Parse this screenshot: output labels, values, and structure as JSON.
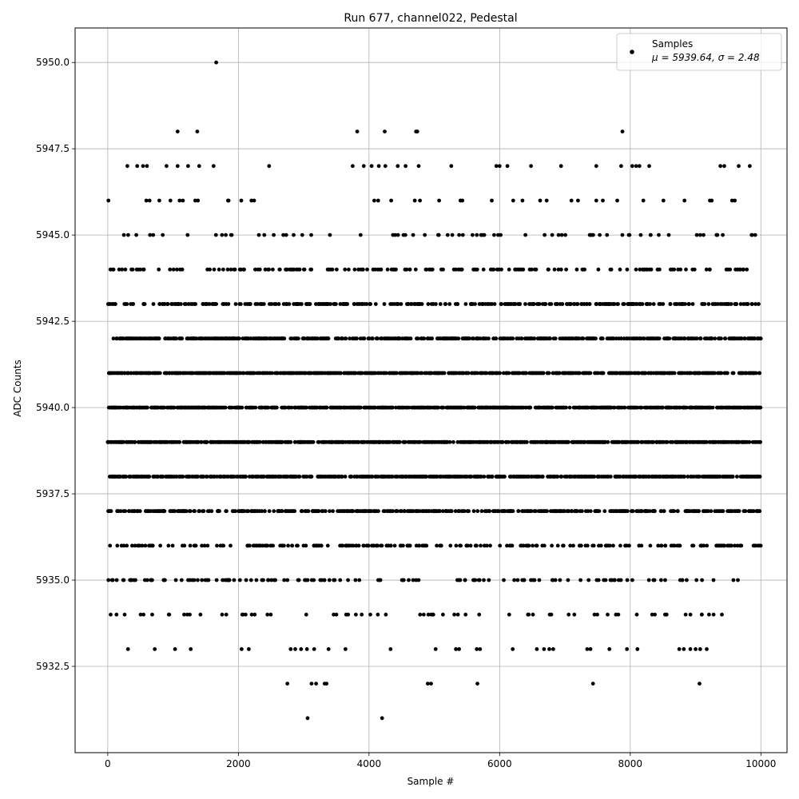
{
  "chart_data": {
    "type": "scatter",
    "title": "Run 677, channel022, Pedestal",
    "xlabel": "Sample #",
    "ylabel": "ADC Counts",
    "xlim": [
      -500,
      10400
    ],
    "ylim": [
      5930.0,
      5951.0
    ],
    "xticks": [
      0,
      2000,
      4000,
      6000,
      8000,
      10000
    ],
    "xtick_labels": [
      "0",
      "2000",
      "4000",
      "6000",
      "8000",
      "10000"
    ],
    "yticks": [
      5932.5,
      5935.0,
      5937.5,
      5940.0,
      5942.5,
      5945.0,
      5947.5,
      5950.0
    ],
    "ytick_labels": [
      "5932.5",
      "5935.0",
      "5937.5",
      "5940.0",
      "5942.5",
      "5945.0",
      "5947.5",
      "5950.0"
    ],
    "grid": true,
    "legend": {
      "placement": "top-right",
      "entries": [
        {
          "label": "Samples",
          "sublabel": "μ = 5939.64, σ = 2.48"
        }
      ]
    },
    "marker_color": "#000000",
    "series": [
      {
        "name": "Samples",
        "mu": 5939.64,
        "sigma": 2.48,
        "n_samples": 10000,
        "sparse_points": [
          [
            1660,
            5950
          ],
          [
            1070,
            5948
          ],
          [
            1370,
            5948
          ],
          [
            3820,
            5948
          ],
          [
            4240,
            5948
          ],
          [
            4720,
            5948
          ],
          [
            4740,
            5948
          ],
          [
            7880,
            5948
          ],
          [
            300,
            5947
          ],
          [
            450,
            5947
          ],
          [
            540,
            5947
          ],
          [
            600,
            5947
          ],
          [
            900,
            5947
          ],
          [
            1070,
            5947
          ],
          [
            1230,
            5947
          ],
          [
            1400,
            5947
          ],
          [
            1620,
            5947
          ],
          [
            2470,
            5947
          ],
          [
            3750,
            5947
          ],
          [
            3920,
            5947
          ],
          [
            4040,
            5947
          ],
          [
            4150,
            5947
          ],
          [
            4250,
            5947
          ],
          [
            4440,
            5947
          ],
          [
            4560,
            5947
          ],
          [
            4760,
            5947
          ],
          [
            5260,
            5947
          ],
          [
            5950,
            5947
          ],
          [
            6000,
            5947
          ],
          [
            6120,
            5947
          ],
          [
            6480,
            5947
          ],
          [
            6940,
            5947
          ],
          [
            7480,
            5947
          ],
          [
            7860,
            5947
          ],
          [
            8030,
            5947
          ],
          [
            8090,
            5947
          ],
          [
            8140,
            5947
          ],
          [
            8290,
            5947
          ],
          [
            9380,
            5947
          ],
          [
            9440,
            5947
          ],
          [
            9660,
            5947
          ],
          [
            9830,
            5947
          ],
          [
            10,
            5946
          ],
          [
            590,
            5946
          ],
          [
            640,
            5946
          ],
          [
            790,
            5946
          ],
          [
            960,
            5946
          ],
          [
            1100,
            5946
          ],
          [
            1150,
            5946
          ],
          [
            1340,
            5946
          ],
          [
            1380,
            5946
          ],
          [
            1850,
            5946
          ],
          [
            2200,
            5946
          ],
          [
            2240,
            5946
          ],
          [
            4080,
            5946
          ],
          [
            4140,
            5946
          ],
          [
            4340,
            5946
          ],
          [
            4700,
            5946
          ],
          [
            4780,
            5946
          ],
          [
            5400,
            5946
          ],
          [
            5430,
            5946
          ],
          [
            5880,
            5946
          ],
          [
            6350,
            5946
          ],
          [
            6620,
            5946
          ],
          [
            6720,
            5946
          ],
          [
            7100,
            5946
          ],
          [
            7200,
            5946
          ],
          [
            7480,
            5946
          ],
          [
            7580,
            5946
          ],
          [
            7800,
            5946
          ],
          [
            8200,
            5946
          ],
          [
            8830,
            5946
          ],
          [
            9220,
            5946
          ],
          [
            9560,
            5946
          ],
          [
            9600,
            5946
          ],
          [
            3060,
            5931
          ],
          [
            4200,
            5931
          ],
          [
            2750,
            5932
          ],
          [
            3120,
            5932
          ],
          [
            3190,
            5932
          ],
          [
            3320,
            5932
          ],
          [
            3350,
            5932
          ],
          [
            4900,
            5932
          ],
          [
            4950,
            5932
          ],
          [
            5660,
            5932
          ],
          [
            7430,
            5932
          ],
          [
            9060,
            5932
          ],
          [
            310,
            5933
          ],
          [
            720,
            5933
          ],
          [
            1030,
            5933
          ],
          [
            1270,
            5933
          ],
          [
            2050,
            5933
          ],
          [
            2160,
            5933
          ],
          [
            2800,
            5933
          ],
          [
            2870,
            5933
          ],
          [
            2960,
            5933
          ],
          [
            3050,
            5933
          ],
          [
            3160,
            5933
          ],
          [
            3380,
            5933
          ],
          [
            3640,
            5933
          ],
          [
            4330,
            5933
          ],
          [
            5020,
            5933
          ],
          [
            5330,
            5933
          ],
          [
            5380,
            5933
          ],
          [
            5650,
            5933
          ],
          [
            5700,
            5933
          ],
          [
            6200,
            5933
          ],
          [
            6570,
            5933
          ],
          [
            6680,
            5933
          ],
          [
            6760,
            5933
          ],
          [
            6820,
            5933
          ],
          [
            7340,
            5933
          ],
          [
            7390,
            5933
          ],
          [
            7680,
            5933
          ],
          [
            7950,
            5933
          ],
          [
            8110,
            5933
          ],
          [
            8750,
            5933
          ],
          [
            8820,
            5933
          ],
          [
            8920,
            5933
          ],
          [
            9000,
            5933
          ],
          [
            9070,
            5933
          ],
          [
            9170,
            5933
          ]
        ]
      }
    ]
  }
}
